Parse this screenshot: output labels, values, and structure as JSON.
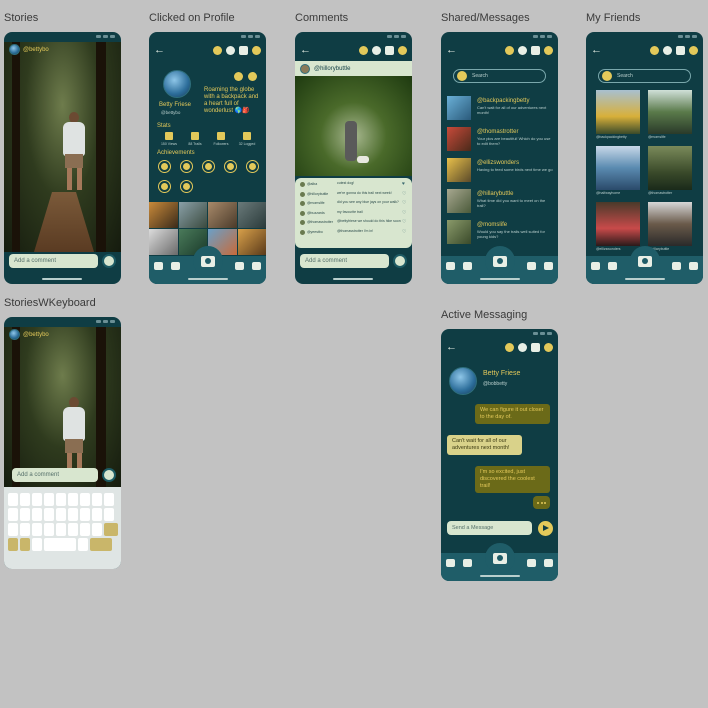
{
  "frames": {
    "stories": {
      "label": "Stories",
      "username": "@bettybo",
      "comment_placeholder": "Add a comment"
    },
    "profile": {
      "label": "Clicked on Profile",
      "name": "Betty Friese",
      "handle": "@bettybo",
      "bio": "Roaming the globe with a backpack and a heart full of wonderlust 🌎🎒",
      "stats_title": "Stats",
      "stats": [
        "150 Views",
        "88 Trails",
        "Followers",
        "32 Logged"
      ],
      "achievements_title": "Achievements"
    },
    "comments": {
      "label": "Comments",
      "username": "@hillorybuttle",
      "comment_placeholder": "Add a comment",
      "items": [
        {
          "name": "@alba",
          "text": "cutest dog!"
        },
        {
          "name": "@hillorybuttle",
          "text": "we're gonna do this trail next week!"
        },
        {
          "name": "@momslife",
          "text": "did you see any blue jays on your walk?"
        },
        {
          "name": "@buzzards",
          "text": "my favourite trail"
        },
        {
          "name": "@thomasstrotter",
          "text": "@bettyfriese we should do this hike soon"
        },
        {
          "name": "@yeestbo",
          "text": "@thomasstrotter I'm in!"
        }
      ]
    },
    "shared": {
      "label": "Shared/Messages",
      "search_placeholder": "Search",
      "messages": [
        {
          "name": "@backpackingbetty",
          "text": "Can't wait for all of our adventures next month!"
        },
        {
          "name": "@thomastrotter",
          "text": "Your pics are beautiful! Which do you use to edit them?"
        },
        {
          "name": "@ellizswonders",
          "text": "Having to feed some birds next time we go"
        },
        {
          "name": "@hillarybuttle",
          "text": "What time did you want to meet on the trail?"
        },
        {
          "name": "@momslife",
          "text": "Would you say the trails well suited for young kids?"
        }
      ]
    },
    "friends": {
      "label": "My Friends",
      "search_placeholder": "Search",
      "names": [
        "@backpackingbetty",
        "@momslife",
        "@halfwayhome",
        "@thomastrotter",
        "@ellizswonders",
        "@hillarybuttle"
      ]
    },
    "keyboard": {
      "label": "StoriesWKeyboard",
      "username": "@bettybo",
      "comment_placeholder": "Add a comment"
    },
    "active": {
      "label": "Active Messaging",
      "name": "Betty Friese",
      "handle": "@bobbetty",
      "bubbles": [
        "We can figure it out closer to the day of.",
        "Can't wait for all of our adventures next month!",
        "I'm so excited, just discovered the coolest trail!"
      ],
      "send_placeholder": "Send a Message"
    }
  },
  "colors": {
    "background": "#c2c2c2",
    "phone": "#0f3d44",
    "navbar": "#1f5d68",
    "accent_gold": "#e3c95a",
    "pale_green": "#d8e6cf"
  },
  "icons": [
    "back-arrow-icon",
    "chat-icon",
    "profile-icon",
    "friends-icon",
    "globe-icon",
    "graduation-icon",
    "heart-icon",
    "camera-icon",
    "map-icon",
    "home-icon",
    "search-icon",
    "send-icon"
  ]
}
